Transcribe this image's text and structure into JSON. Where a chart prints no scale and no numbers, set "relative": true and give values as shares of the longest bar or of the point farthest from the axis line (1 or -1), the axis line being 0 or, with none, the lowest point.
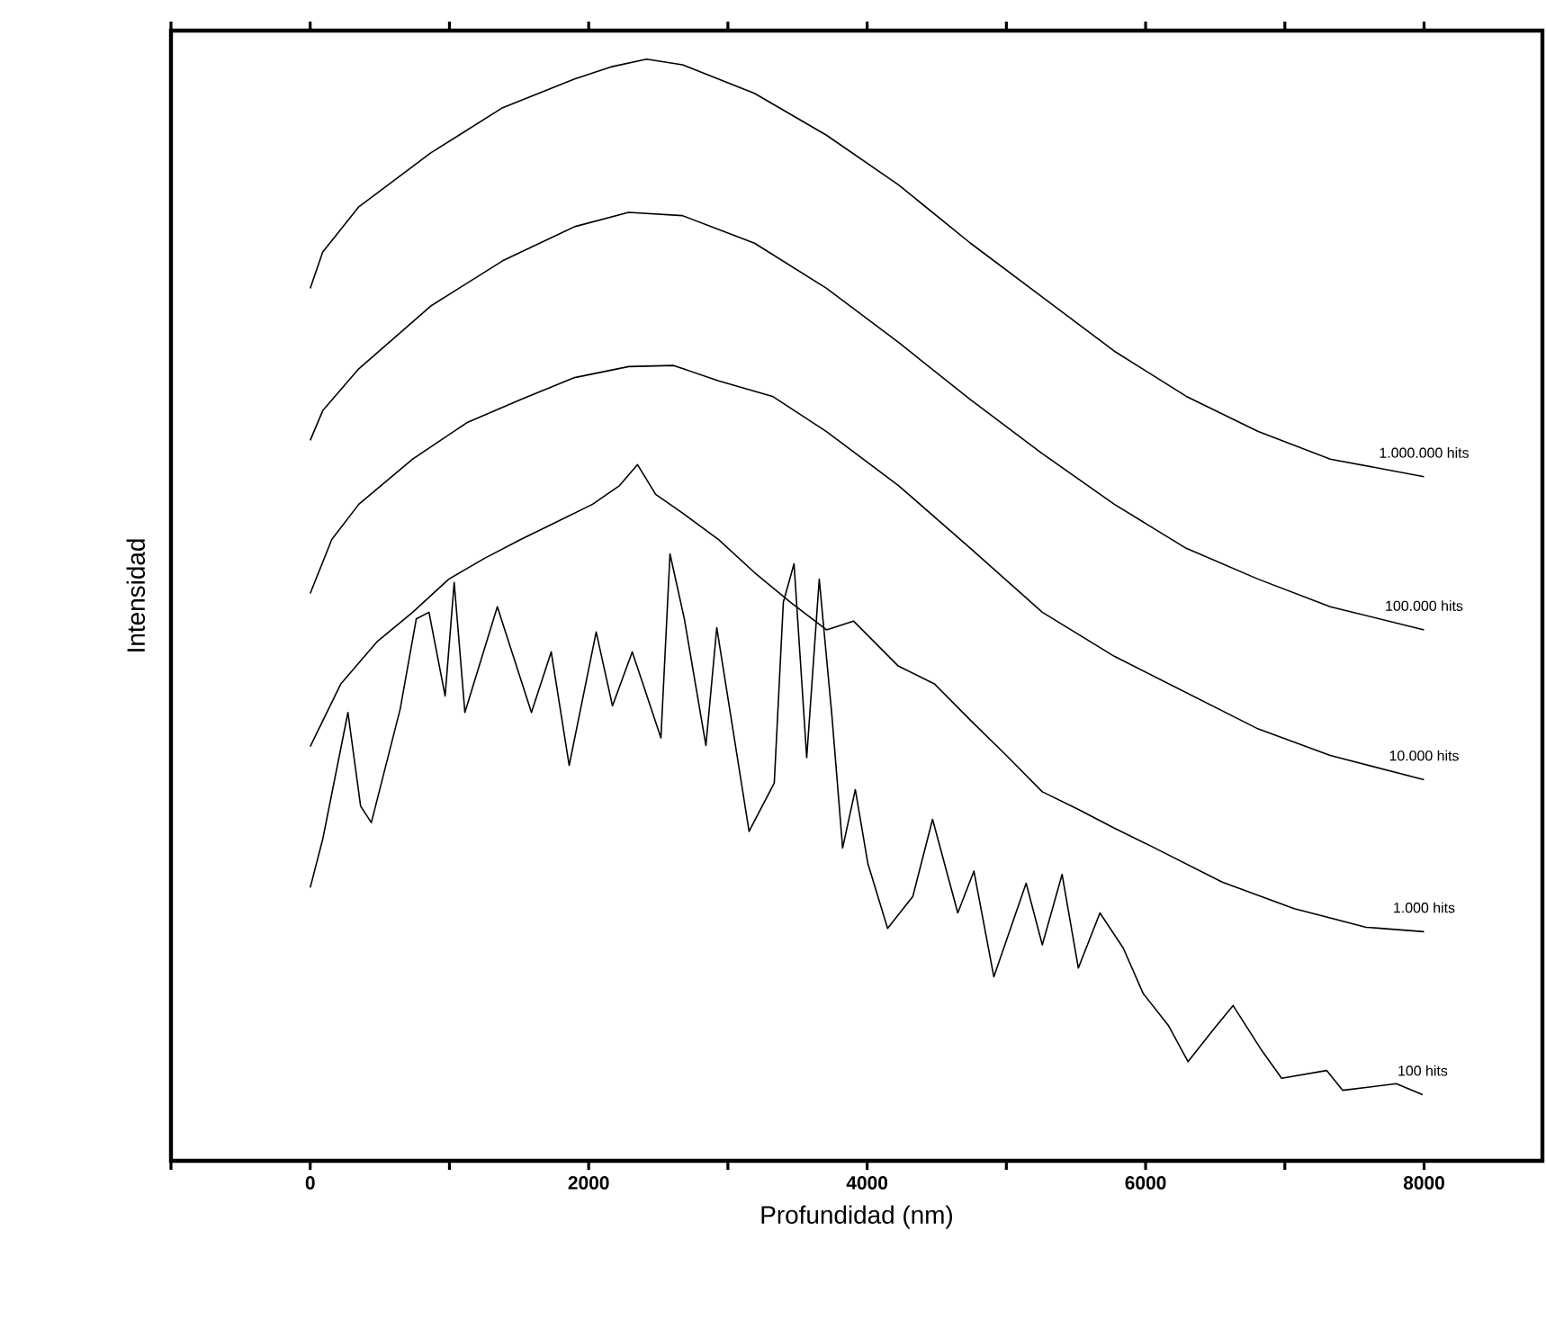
{
  "chart_data": {
    "type": "line",
    "xlabel": "Profundidad (nm)",
    "ylabel": "Intensidad",
    "relative": true,
    "xlim": [
      -1000,
      8850
    ],
    "xticks": [
      {
        "value": -1000,
        "label": null
      },
      0,
      {
        "value": 1000,
        "label": null
      },
      2000,
      {
        "value": 3000,
        "label": null
      },
      4000,
      {
        "value": 5000,
        "label": null
      },
      6000,
      {
        "value": 7000,
        "label": null
      },
      8000
    ],
    "grid": false,
    "legend": false,
    "marker": "none",
    "line_style": "solid",
    "series": [
      {
        "name": "1.000.000 hits",
        "color": "#000000",
        "x": [
          0,
          90,
          349,
          866,
          1382,
          1899,
          2158,
          2416,
          2674,
          3191,
          3708,
          4225,
          4742,
          5258,
          5775,
          6292,
          6809,
          7326,
          8000
        ],
        "values": [
          0.792,
          0.825,
          0.866,
          0.915,
          0.956,
          0.982,
          0.993,
          1.0,
          0.995,
          0.969,
          0.931,
          0.886,
          0.833,
          0.784,
          0.735,
          0.694,
          0.662,
          0.637,
          0.621
        ]
      },
      {
        "name": "100.000 hits",
        "color": "#000000",
        "x": [
          0,
          90,
          349,
          866,
          1382,
          1899,
          2287,
          2674,
          3191,
          3708,
          4225,
          4742,
          5258,
          5775,
          6292,
          6809,
          7326,
          8000
        ],
        "values": [
          0.654,
          0.681,
          0.719,
          0.776,
          0.817,
          0.848,
          0.861,
          0.858,
          0.833,
          0.792,
          0.743,
          0.691,
          0.642,
          0.596,
          0.556,
          0.528,
          0.503,
          0.482
        ]
      },
      {
        "name": "10.000 hits",
        "color": "#000000",
        "x": [
          0,
          155,
          349,
          736,
          1124,
          1512,
          1899,
          2287,
          2610,
          2933,
          3320,
          3708,
          4225,
          4742,
          5258,
          5775,
          6292,
          6809,
          7326,
          8000
        ],
        "values": [
          0.515,
          0.564,
          0.596,
          0.637,
          0.67,
          0.691,
          0.711,
          0.721,
          0.722,
          0.708,
          0.694,
          0.662,
          0.613,
          0.556,
          0.498,
          0.458,
          0.425,
          0.392,
          0.368,
          0.346
        ]
      },
      {
        "name": "1.000 hits",
        "color": "#000000",
        "x": [
          0,
          220,
          478,
          736,
          995,
          1253,
          1512,
          1770,
          2028,
          2222,
          2351,
          2481,
          2674,
          2933,
          3191,
          3450,
          3708,
          3902,
          4225,
          4483,
          4742,
          5000,
          5258,
          5517,
          5775,
          6034,
          6550,
          7067,
          7584,
          8000
        ],
        "values": [
          0.376,
          0.433,
          0.471,
          0.498,
          0.528,
          0.547,
          0.564,
          0.58,
          0.596,
          0.613,
          0.632,
          0.605,
          0.588,
          0.564,
          0.534,
          0.507,
          0.482,
          0.49,
          0.449,
          0.433,
          0.4,
          0.368,
          0.335,
          0.319,
          0.302,
          0.286,
          0.253,
          0.229,
          0.212,
          0.208
        ]
      },
      {
        "name": "100 hits",
        "color": "#000000",
        "x": [
          0,
          90,
          271,
          362,
          439,
          646,
          762,
          853,
          969,
          1034,
          1111,
          1344,
          1589,
          1731,
          1860,
          2054,
          2171,
          2313,
          2519,
          2584,
          2687,
          2842,
          2920,
          3152,
          3333,
          3398,
          3475,
          3566,
          3656,
          3747,
          3824,
          3915,
          4005,
          4147,
          4328,
          4470,
          4651,
          4767,
          4910,
          5142,
          5258,
          5400,
          5517,
          5672,
          5840,
          5982,
          6163,
          6305,
          6486,
          6628,
          6835,
          6977,
          7300,
          7416,
          7800,
          7990
        ],
        "values": [
          0.248,
          0.292,
          0.407,
          0.322,
          0.307,
          0.41,
          0.492,
          0.498,
          0.422,
          0.525,
          0.407,
          0.503,
          0.407,
          0.462,
          0.359,
          0.48,
          0.413,
          0.462,
          0.384,
          0.551,
          0.492,
          0.377,
          0.484,
          0.299,
          0.343,
          0.507,
          0.542,
          0.366,
          0.528,
          0.404,
          0.284,
          0.337,
          0.27,
          0.211,
          0.24,
          0.31,
          0.225,
          0.263,
          0.167,
          0.252,
          0.196,
          0.26,
          0.175,
          0.225,
          0.193,
          0.152,
          0.123,
          0.09,
          0.119,
          0.141,
          0.1,
          0.075,
          0.082,
          0.064,
          0.07,
          0.06
        ]
      }
    ]
  }
}
